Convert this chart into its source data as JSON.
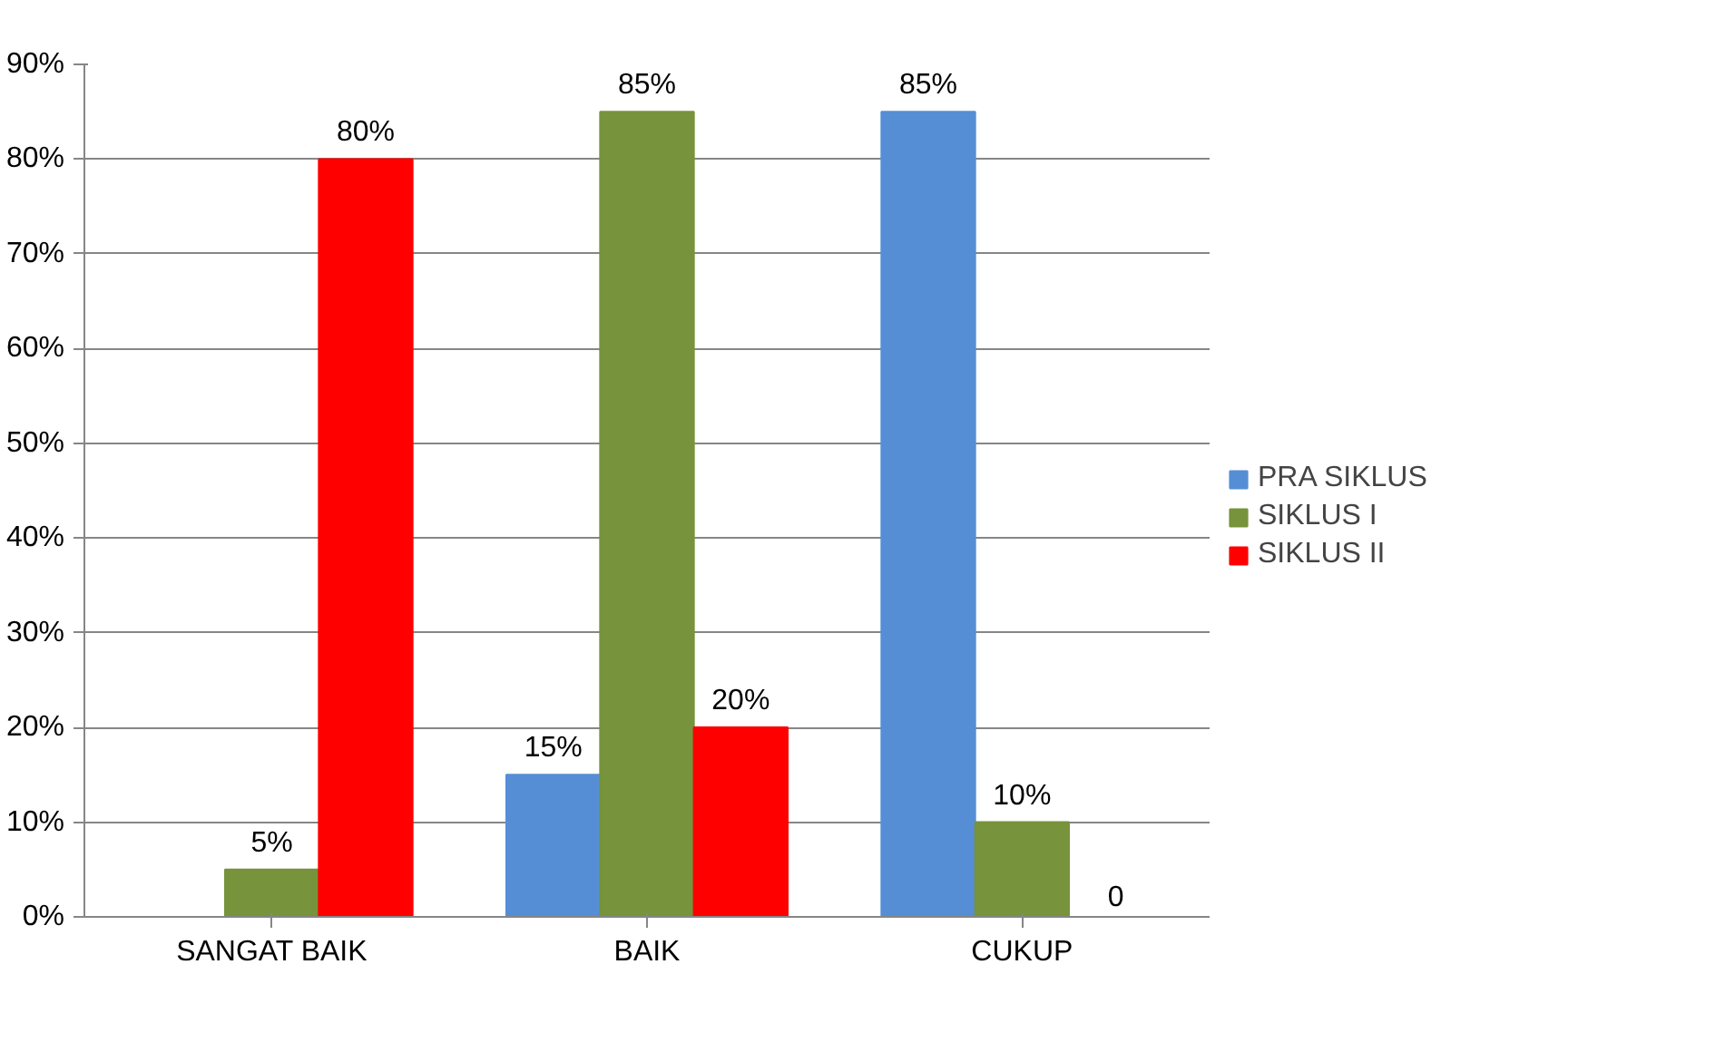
{
  "chart_data": {
    "type": "bar",
    "categories": [
      "SANGAT BAIK",
      "BAIK",
      "CUKUP"
    ],
    "series": [
      {
        "name": "PRA SIKLUS",
        "color": "#558ed5",
        "values": [
          null,
          15,
          85
        ],
        "value_labels": [
          null,
          "15%",
          "85%"
        ]
      },
      {
        "name": "SIKLUS I",
        "color": "#77933c",
        "values": [
          5,
          85,
          10
        ],
        "value_labels": [
          "5%",
          "85%",
          "10%"
        ]
      },
      {
        "name": "SIKLUS II",
        "color": "#ff0000",
        "values": [
          80,
          20,
          0
        ],
        "value_labels": [
          "80%",
          "20%",
          "0"
        ]
      }
    ],
    "ylim": [
      0,
      90
    ],
    "yticks": [
      {
        "value": 0,
        "label": "0%"
      },
      {
        "value": 10,
        "label": "10%"
      },
      {
        "value": 20,
        "label": "20%"
      },
      {
        "value": 30,
        "label": "30%"
      },
      {
        "value": 40,
        "label": "40%"
      },
      {
        "value": 50,
        "label": "50%"
      },
      {
        "value": 60,
        "label": "60%"
      },
      {
        "value": 70,
        "label": "70%"
      },
      {
        "value": 80,
        "label": "80%"
      },
      {
        "value": 90,
        "label": "90%"
      }
    ],
    "grid": "y",
    "legend": "right"
  }
}
